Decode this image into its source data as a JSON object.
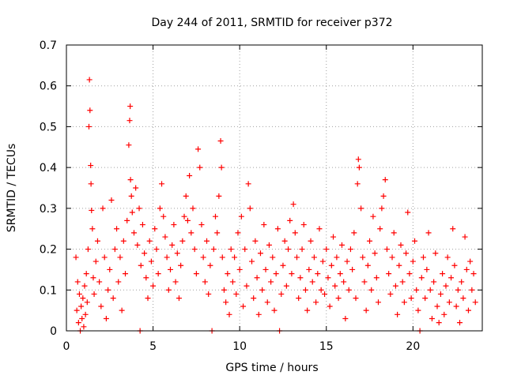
{
  "chart_data": {
    "type": "scatter",
    "title": "Day 244 of 2011, SRMTID for receiver p372",
    "xlabel": "GPS time / hours",
    "ylabel": "SRMTID / TECUs",
    "xlim": [
      0,
      24
    ],
    "ylim": [
      0,
      0.7
    ],
    "x_ticks": [
      "0",
      "5",
      "10",
      "15",
      "20"
    ],
    "x_tick_values": [
      0,
      5,
      10,
      15,
      20
    ],
    "y_ticks": [
      "0",
      "0.1",
      "0.2",
      "0.3",
      "0.4",
      "0.5",
      "0.6",
      "0.7"
    ],
    "y_tick_values": [
      0,
      0.1,
      0.2,
      0.3,
      0.4,
      0.5,
      0.6,
      0.7
    ],
    "grid": true,
    "marker": "+",
    "color": "#ff0000",
    "series": [
      {
        "name": "SRMTID",
        "points": [
          [
            0.55,
            0.18
          ],
          [
            0.6,
            0.05
          ],
          [
            0.65,
            0.12
          ],
          [
            0.7,
            0.02
          ],
          [
            0.75,
            0.09
          ],
          [
            0.8,
            0.0
          ],
          [
            0.85,
            0.06
          ],
          [
            0.9,
            0.03
          ],
          [
            0.95,
            0.08
          ],
          [
            1.0,
            0.01
          ],
          [
            1.05,
            0.11
          ],
          [
            1.1,
            0.04
          ],
          [
            1.15,
            0.14
          ],
          [
            1.2,
            0.07
          ],
          [
            1.25,
            0.2
          ],
          [
            1.3,
            0.5
          ],
          [
            1.33,
            0.615
          ],
          [
            1.36,
            0.54
          ],
          [
            1.4,
            0.405
          ],
          [
            1.42,
            0.36
          ],
          [
            1.45,
            0.295
          ],
          [
            1.5,
            0.25
          ],
          [
            1.55,
            0.13
          ],
          [
            1.6,
            0.09
          ],
          [
            1.7,
            0.17
          ],
          [
            1.8,
            0.22
          ],
          [
            1.9,
            0.12
          ],
          [
            2.0,
            0.06
          ],
          [
            2.1,
            0.3
          ],
          [
            2.2,
            0.18
          ],
          [
            2.3,
            0.03
          ],
          [
            2.4,
            0.1
          ],
          [
            2.5,
            0.15
          ],
          [
            2.6,
            0.32
          ],
          [
            2.7,
            0.08
          ],
          [
            2.8,
            0.2
          ],
          [
            2.9,
            0.25
          ],
          [
            3.0,
            0.12
          ],
          [
            3.1,
            0.18
          ],
          [
            3.2,
            0.05
          ],
          [
            3.3,
            0.22
          ],
          [
            3.4,
            0.14
          ],
          [
            3.5,
            0.27
          ],
          [
            3.6,
            0.455
          ],
          [
            3.65,
            0.515
          ],
          [
            3.68,
            0.55
          ],
          [
            3.7,
            0.37
          ],
          [
            3.75,
            0.33
          ],
          [
            3.8,
            0.29
          ],
          [
            3.9,
            0.24
          ],
          [
            4.0,
            0.35
          ],
          [
            4.1,
            0.21
          ],
          [
            4.2,
            0.3
          ],
          [
            4.25,
            0.0
          ],
          [
            4.3,
            0.16
          ],
          [
            4.4,
            0.26
          ],
          [
            4.5,
            0.19
          ],
          [
            4.6,
            0.13
          ],
          [
            4.7,
            0.08
          ],
          [
            4.8,
            0.22
          ],
          [
            4.9,
            0.17
          ],
          [
            5.0,
            0.11
          ],
          [
            5.1,
            0.25
          ],
          [
            5.2,
            0.2
          ],
          [
            5.3,
            0.14
          ],
          [
            5.4,
            0.3
          ],
          [
            5.5,
            0.36
          ],
          [
            5.6,
            0.28
          ],
          [
            5.7,
            0.23
          ],
          [
            5.8,
            0.18
          ],
          [
            5.9,
            0.1
          ],
          [
            6.0,
            0.15
          ],
          [
            6.1,
            0.21
          ],
          [
            6.2,
            0.26
          ],
          [
            6.3,
            0.12
          ],
          [
            6.4,
            0.19
          ],
          [
            6.5,
            0.08
          ],
          [
            6.6,
            0.16
          ],
          [
            6.7,
            0.22
          ],
          [
            6.8,
            0.28
          ],
          [
            6.9,
            0.33
          ],
          [
            7.0,
            0.27
          ],
          [
            7.1,
            0.38
          ],
          [
            7.2,
            0.24
          ],
          [
            7.3,
            0.3
          ],
          [
            7.4,
            0.2
          ],
          [
            7.5,
            0.14
          ],
          [
            7.6,
            0.445
          ],
          [
            7.7,
            0.4
          ],
          [
            7.8,
            0.26
          ],
          [
            7.9,
            0.18
          ],
          [
            8.0,
            0.12
          ],
          [
            8.1,
            0.22
          ],
          [
            8.2,
            0.09
          ],
          [
            8.3,
            0.16
          ],
          [
            8.4,
            0.0
          ],
          [
            8.5,
            0.2
          ],
          [
            8.6,
            0.28
          ],
          [
            8.7,
            0.24
          ],
          [
            8.8,
            0.33
          ],
          [
            8.9,
            0.465
          ],
          [
            8.95,
            0.4
          ],
          [
            9.0,
            0.18
          ],
          [
            9.1,
            0.1
          ],
          [
            9.2,
            0.07
          ],
          [
            9.3,
            0.14
          ],
          [
            9.4,
            0.04
          ],
          [
            9.5,
            0.2
          ],
          [
            9.6,
            0.12
          ],
          [
            9.7,
            0.18
          ],
          [
            9.8,
            0.09
          ],
          [
            9.9,
            0.24
          ],
          [
            10.0,
            0.15
          ],
          [
            10.1,
            0.28
          ],
          [
            10.2,
            0.06
          ],
          [
            10.3,
            0.2
          ],
          [
            10.4,
            0.11
          ],
          [
            10.5,
            0.36
          ],
          [
            10.6,
            0.3
          ],
          [
            10.7,
            0.17
          ],
          [
            10.8,
            0.08
          ],
          [
            10.9,
            0.22
          ],
          [
            11.0,
            0.13
          ],
          [
            11.1,
            0.04
          ],
          [
            11.2,
            0.19
          ],
          [
            11.3,
            0.1
          ],
          [
            11.4,
            0.26
          ],
          [
            11.5,
            0.15
          ],
          [
            11.6,
            0.07
          ],
          [
            11.7,
            0.21
          ],
          [
            11.8,
            0.12
          ],
          [
            11.9,
            0.18
          ],
          [
            12.0,
            0.05
          ],
          [
            12.1,
            0.14
          ],
          [
            12.2,
            0.25
          ],
          [
            12.3,
            0.0
          ],
          [
            12.4,
            0.09
          ],
          [
            12.5,
            0.16
          ],
          [
            12.6,
            0.22
          ],
          [
            12.7,
            0.11
          ],
          [
            12.8,
            0.2
          ],
          [
            12.9,
            0.27
          ],
          [
            13.0,
            0.14
          ],
          [
            13.1,
            0.31
          ],
          [
            13.2,
            0.24
          ],
          [
            13.3,
            0.18
          ],
          [
            13.4,
            0.08
          ],
          [
            13.5,
            0.13
          ],
          [
            13.6,
            0.2
          ],
          [
            13.7,
            0.26
          ],
          [
            13.8,
            0.1
          ],
          [
            13.9,
            0.05
          ],
          [
            14.0,
            0.15
          ],
          [
            14.1,
            0.22
          ],
          [
            14.2,
            0.12
          ],
          [
            14.3,
            0.18
          ],
          [
            14.4,
            0.07
          ],
          [
            14.5,
            0.14
          ],
          [
            14.6,
            0.25
          ],
          [
            14.7,
            0.1
          ],
          [
            14.8,
            0.17
          ],
          [
            14.9,
            0.09
          ],
          [
            15.0,
            0.2
          ],
          [
            15.1,
            0.13
          ],
          [
            15.2,
            0.06
          ],
          [
            15.3,
            0.16
          ],
          [
            15.4,
            0.23
          ],
          [
            15.5,
            0.11
          ],
          [
            15.6,
            0.18
          ],
          [
            15.7,
            0.08
          ],
          [
            15.8,
            0.14
          ],
          [
            15.9,
            0.21
          ],
          [
            16.0,
            0.12
          ],
          [
            16.1,
            0.03
          ],
          [
            16.2,
            0.17
          ],
          [
            16.3,
            0.1
          ],
          [
            16.4,
            0.2
          ],
          [
            16.5,
            0.15
          ],
          [
            16.6,
            0.24
          ],
          [
            16.7,
            0.08
          ],
          [
            16.8,
            0.36
          ],
          [
            16.85,
            0.42
          ],
          [
            16.9,
            0.4
          ],
          [
            17.0,
            0.3
          ],
          [
            17.1,
            0.18
          ],
          [
            17.2,
            0.12
          ],
          [
            17.3,
            0.05
          ],
          [
            17.4,
            0.16
          ],
          [
            17.5,
            0.22
          ],
          [
            17.6,
            0.1
          ],
          [
            17.7,
            0.28
          ],
          [
            17.8,
            0.19
          ],
          [
            17.9,
            0.13
          ],
          [
            18.0,
            0.07
          ],
          [
            18.1,
            0.25
          ],
          [
            18.2,
            0.3
          ],
          [
            18.3,
            0.33
          ],
          [
            18.4,
            0.37
          ],
          [
            18.5,
            0.2
          ],
          [
            18.6,
            0.14
          ],
          [
            18.7,
            0.09
          ],
          [
            18.8,
            0.18
          ],
          [
            18.9,
            0.24
          ],
          [
            19.0,
            0.11
          ],
          [
            19.1,
            0.04
          ],
          [
            19.2,
            0.16
          ],
          [
            19.3,
            0.21
          ],
          [
            19.4,
            0.12
          ],
          [
            19.5,
            0.07
          ],
          [
            19.6,
            0.19
          ],
          [
            19.7,
            0.29
          ],
          [
            19.8,
            0.14
          ],
          [
            19.9,
            0.08
          ],
          [
            20.0,
            0.17
          ],
          [
            20.1,
            0.22
          ],
          [
            20.2,
            0.1
          ],
          [
            20.3,
            0.05
          ],
          [
            20.4,
            0.0
          ],
          [
            20.5,
            0.13
          ],
          [
            20.6,
            0.18
          ],
          [
            20.7,
            0.08
          ],
          [
            20.8,
            0.15
          ],
          [
            20.9,
            0.24
          ],
          [
            21.0,
            0.1
          ],
          [
            21.1,
            0.03
          ],
          [
            21.2,
            0.12
          ],
          [
            21.3,
            0.19
          ],
          [
            21.4,
            0.06
          ],
          [
            21.5,
            0.02
          ],
          [
            21.6,
            0.09
          ],
          [
            21.7,
            0.14
          ],
          [
            21.8,
            0.04
          ],
          [
            21.9,
            0.11
          ],
          [
            22.0,
            0.18
          ],
          [
            22.1,
            0.07
          ],
          [
            22.2,
            0.13
          ],
          [
            22.3,
            0.25
          ],
          [
            22.4,
            0.16
          ],
          [
            22.5,
            0.06
          ],
          [
            22.6,
            0.1
          ],
          [
            22.7,
            0.02
          ],
          [
            22.8,
            0.12
          ],
          [
            22.9,
            0.08
          ],
          [
            23.0,
            0.23
          ],
          [
            23.1,
            0.15
          ],
          [
            23.2,
            0.05
          ],
          [
            23.3,
            0.17
          ],
          [
            23.4,
            0.1
          ],
          [
            23.5,
            0.14
          ],
          [
            23.6,
            0.07
          ]
        ]
      }
    ]
  }
}
